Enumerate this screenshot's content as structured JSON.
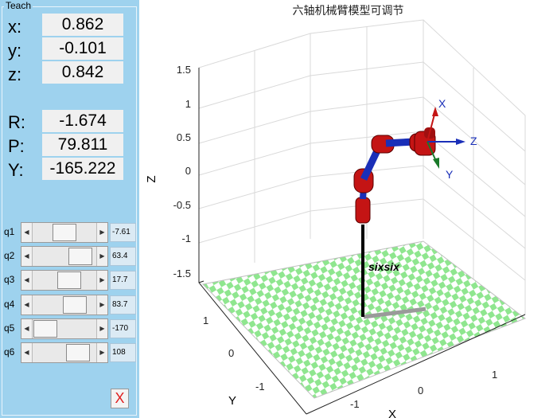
{
  "teach": {
    "title": "Teach",
    "position": [
      {
        "label": "x:",
        "value": "0.862"
      },
      {
        "label": "y:",
        "value": "-0.101"
      },
      {
        "label": "z:",
        "value": "0.842"
      }
    ],
    "orientation": [
      {
        "label": "R:",
        "value": "-1.674"
      },
      {
        "label": "P:",
        "value": "79.811"
      },
      {
        "label": "Y:",
        "value": "-165.222"
      }
    ],
    "joints": [
      {
        "label": "q1",
        "value": "-7.61",
        "level": 0.49
      },
      {
        "label": "q2",
        "value": "63.4",
        "level": 0.85
      },
      {
        "label": "q3",
        "value": "17.7",
        "level": 0.6
      },
      {
        "label": "q4",
        "value": "83.7",
        "level": 0.73
      },
      {
        "label": "q5",
        "value": "-170",
        "level": 0.03
      },
      {
        "label": "q6",
        "value": "108",
        "level": 0.8
      }
    ],
    "close_label": "X"
  },
  "plot": {
    "title": "六轴机械臂模型可调节",
    "robot_name": "sixsix",
    "z_ticks": [
      "1.5",
      "1",
      "0.5",
      "0",
      "-0.5",
      "-1",
      "-1.5"
    ],
    "z_label": "Z",
    "y_ticks": [
      "1",
      "0",
      "-1"
    ],
    "y_label": "Y",
    "x_ticks": [
      "-1",
      "0",
      "1"
    ],
    "x_label": "X",
    "frame_labels": {
      "x": "X",
      "y": "Y",
      "z": "Z"
    },
    "colors": {
      "link": "#1a2fb8",
      "joint": "#c41414",
      "floor_a": "#8fe68f",
      "floor_b": "#ffffff",
      "base": "#000000"
    }
  }
}
